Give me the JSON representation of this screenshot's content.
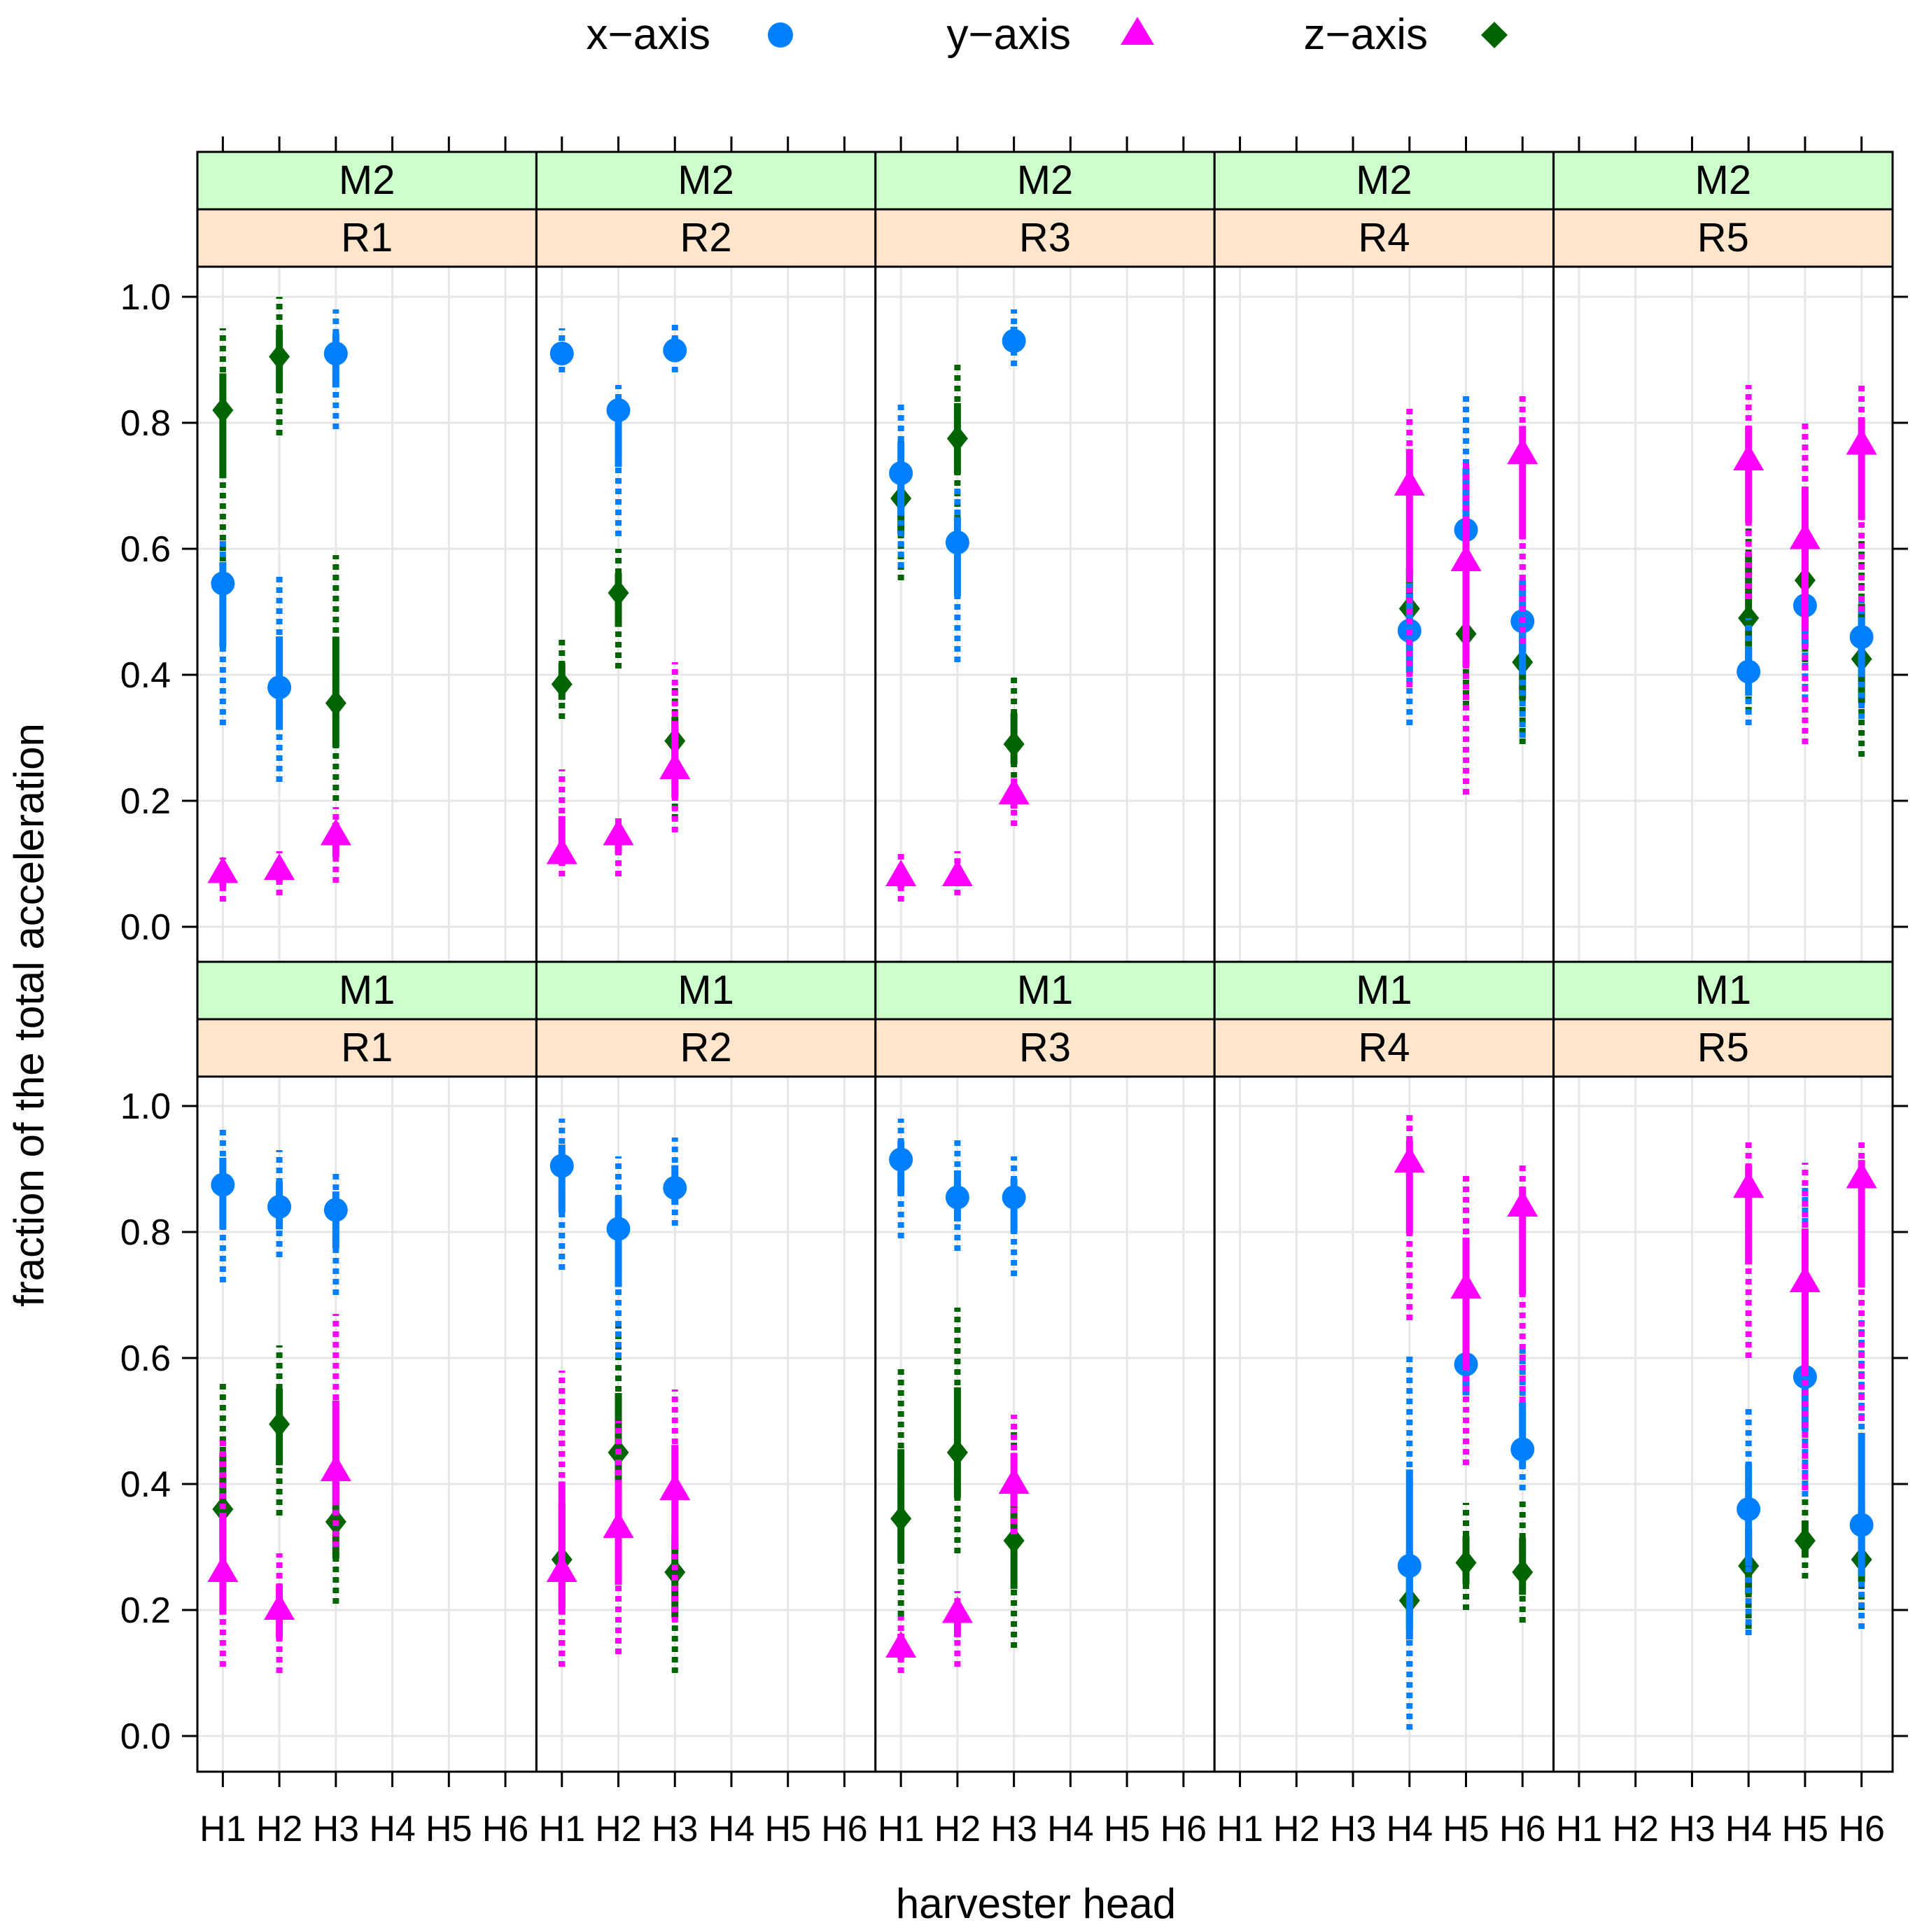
{
  "chart_data": {
    "type": "scatter",
    "title": "",
    "xlabel": "harvester head",
    "ylabel": "fraction of the total acceleration",
    "ylim": [
      0,
      1
    ],
    "yticks": [
      "0.0",
      "0.2",
      "0.4",
      "0.6",
      "0.8",
      "1.0"
    ],
    "categories": [
      "H1",
      "H2",
      "H3",
      "H4",
      "H5",
      "H6"
    ],
    "grid": true,
    "legend": {
      "placement": "top",
      "entries": [
        {
          "label": "x−axis",
          "key": "x",
          "color": "#0080ff",
          "marker": "circle"
        },
        {
          "label": "y−axis",
          "key": "y",
          "color": "#ff00ff",
          "marker": "triangle"
        },
        {
          "label": "z−axis",
          "key": "z",
          "color": "#006400",
          "marker": "diamond"
        }
      ]
    },
    "strip_colors": {
      "machine": "#ccffcc",
      "run": "#ffe5cc"
    },
    "panels": [
      {
        "machine": "M2",
        "run": "R1",
        "heads": [
          "H1",
          "H2",
          "H3"
        ],
        "x": [
          0.545,
          0.38,
          0.91
        ],
        "x_lo": [
          0.32,
          0.23,
          0.79
        ],
        "x_hi": [
          0.62,
          0.56,
          0.98
        ],
        "y": [
          0.085,
          0.09,
          0.145
        ],
        "y_lo": [
          0.04,
          0.05,
          0.07
        ],
        "y_hi": [
          0.11,
          0.12,
          0.19
        ],
        "z": [
          0.82,
          0.905,
          0.355
        ],
        "z_lo": [
          0.58,
          0.78,
          0.2
        ],
        "z_hi": [
          0.95,
          1.0,
          0.59
        ]
      },
      {
        "machine": "M2",
        "run": "R2",
        "heads": [
          "H1",
          "H2",
          "H3"
        ],
        "x": [
          0.91,
          0.82,
          0.915
        ],
        "x_lo": [
          0.88,
          0.62,
          0.88
        ],
        "x_hi": [
          0.95,
          0.86,
          0.96
        ],
        "y": [
          0.115,
          0.145,
          0.25
        ],
        "y_lo": [
          0.08,
          0.08,
          0.15
        ],
        "y_hi": [
          0.25,
          0.18,
          0.42
        ],
        "z": [
          0.385,
          0.53,
          0.295
        ],
        "z_lo": [
          0.33,
          0.41,
          0.17
        ],
        "z_hi": [
          0.46,
          0.6,
          0.38
        ]
      },
      {
        "machine": "M2",
        "run": "R3",
        "heads": [
          "H1",
          "H2",
          "H3"
        ],
        "x": [
          0.72,
          0.61,
          0.93
        ],
        "x_lo": [
          0.57,
          0.42,
          0.89
        ],
        "x_hi": [
          0.83,
          0.7,
          0.98
        ],
        "y": [
          0.08,
          0.08,
          0.21
        ],
        "y_lo": [
          0.04,
          0.05,
          0.16
        ],
        "y_hi": [
          0.12,
          0.12,
          0.24
        ],
        "z": [
          0.68,
          0.775,
          0.29
        ],
        "z_lo": [
          0.55,
          0.65,
          0.22
        ],
        "z_hi": [
          0.78,
          0.9,
          0.4
        ]
      },
      {
        "machine": "M2",
        "run": "R4",
        "heads": [
          "H4",
          "H5",
          "H6"
        ],
        "x": [
          0.47,
          0.63,
          0.485
        ],
        "x_lo": [
          0.32,
          0.45,
          0.3
        ],
        "x_hi": [
          0.6,
          0.85,
          0.63
        ],
        "y": [
          0.7,
          0.58,
          0.75
        ],
        "y_lo": [
          0.38,
          0.21,
          0.45
        ],
        "y_hi": [
          0.83,
          0.74,
          0.85
        ],
        "z": [
          0.505,
          0.465,
          0.42
        ],
        "z_lo": [
          0.41,
          0.35,
          0.29
        ],
        "z_hi": [
          0.65,
          0.6,
          0.52
        ]
      },
      {
        "machine": "M2",
        "run": "R5",
        "heads": [
          "H4",
          "H5",
          "H6"
        ],
        "x": [
          0.405,
          0.51,
          0.46
        ],
        "x_lo": [
          0.32,
          0.36,
          0.33
        ],
        "x_hi": [
          0.49,
          0.64,
          0.53
        ],
        "y": [
          0.74,
          0.615,
          0.765
        ],
        "y_lo": [
          0.52,
          0.29,
          0.5
        ],
        "y_hi": [
          0.86,
          0.8,
          0.86
        ],
        "z": [
          0.49,
          0.55,
          0.425
        ],
        "z_lo": [
          0.34,
          0.42,
          0.27
        ],
        "z_hi": [
          0.72,
          0.66,
          0.62
        ]
      },
      {
        "machine": "M1",
        "run": "R1",
        "heads": [
          "H1",
          "H2",
          "H3"
        ],
        "x": [
          0.875,
          0.84,
          0.835
        ],
        "x_lo": [
          0.72,
          0.76,
          0.7
        ],
        "x_hi": [
          0.97,
          0.93,
          0.9
        ],
        "y": [
          0.26,
          0.2,
          0.42
        ],
        "y_lo": [
          0.11,
          0.1,
          0.3
        ],
        "y_hi": [
          0.47,
          0.29,
          0.67
        ],
        "z": [
          0.36,
          0.495,
          0.34
        ],
        "z_lo": [
          0.2,
          0.35,
          0.21
        ],
        "z_hi": [
          0.56,
          0.62,
          0.52
        ]
      },
      {
        "machine": "M1",
        "run": "R2",
        "heads": [
          "H1",
          "H2",
          "H3"
        ],
        "x": [
          0.905,
          0.805,
          0.87
        ],
        "x_lo": [
          0.74,
          0.6,
          0.81
        ],
        "x_hi": [
          0.98,
          0.92,
          0.95
        ],
        "y": [
          0.26,
          0.33,
          0.39
        ],
        "y_lo": [
          0.11,
          0.13,
          0.18
        ],
        "y_hi": [
          0.58,
          0.5,
          0.55
        ],
        "z": [
          0.28,
          0.45,
          0.26
        ],
        "z_lo": [
          0.11,
          0.33,
          0.1
        ],
        "z_hi": [
          0.48,
          0.66,
          0.39
        ]
      },
      {
        "machine": "M1",
        "run": "R3",
        "heads": [
          "H1",
          "H2",
          "H3"
        ],
        "x": [
          0.915,
          0.855,
          0.855
        ],
        "x_lo": [
          0.79,
          0.77,
          0.73
        ],
        "x_hi": [
          0.98,
          0.95,
          0.92
        ],
        "y": [
          0.14,
          0.195,
          0.4
        ],
        "y_lo": [
          0.1,
          0.11,
          0.32
        ],
        "y_hi": [
          0.19,
          0.23,
          0.51
        ],
        "z": [
          0.345,
          0.45,
          0.31
        ],
        "z_lo": [
          0.19,
          0.29,
          0.14
        ],
        "z_hi": [
          0.59,
          0.68,
          0.49
        ]
      },
      {
        "machine": "M1",
        "run": "R4",
        "heads": [
          "H4",
          "H5",
          "H6"
        ],
        "x": [
          0.27,
          0.59,
          0.455
        ],
        "x_lo": [
          0.01,
          0.48,
          0.39
        ],
        "x_hi": [
          0.61,
          0.86,
          0.62
        ],
        "y": [
          0.91,
          0.71,
          0.84
        ],
        "y_lo": [
          0.66,
          0.43,
          0.53
        ],
        "y_hi": [
          0.99,
          0.89,
          0.91
        ],
        "z": [
          0.215,
          0.275,
          0.26
        ],
        "z_lo": [
          0.11,
          0.2,
          0.18
        ],
        "z_hi": [
          0.39,
          0.37,
          0.38
        ]
      },
      {
        "machine": "M1",
        "run": "R5",
        "heads": [
          "H4",
          "H5",
          "H6"
        ],
        "x": [
          0.36,
          0.57,
          0.335
        ],
        "x_lo": [
          0.16,
          0.38,
          0.17
        ],
        "x_hi": [
          0.52,
          0.87,
          0.66
        ],
        "y": [
          0.87,
          0.72,
          0.885
        ],
        "y_lo": [
          0.6,
          0.39,
          0.5
        ],
        "y_hi": [
          0.95,
          0.91,
          0.95
        ],
        "z": [
          0.27,
          0.31,
          0.28
        ],
        "z_lo": [
          0.17,
          0.25,
          0.2
        ],
        "z_hi": [
          0.4,
          0.38,
          0.47
        ]
      }
    ]
  }
}
